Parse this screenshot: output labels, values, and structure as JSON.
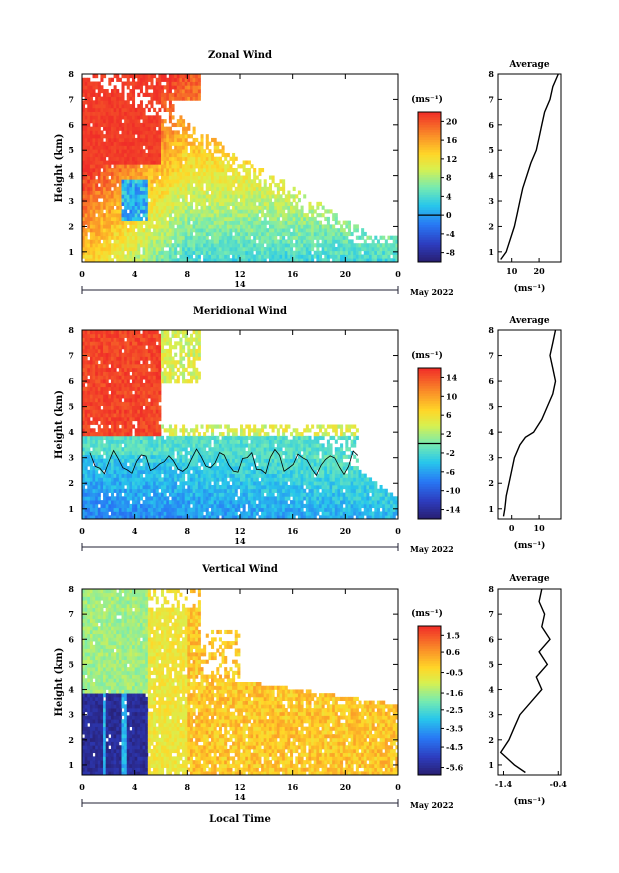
{
  "common": {
    "x_ticks": [
      "0",
      "4",
      "8",
      "12",
      "16",
      "20",
      "0"
    ],
    "y_ticks": [
      "1",
      "2",
      "3",
      "4",
      "5",
      "6",
      "7",
      "8"
    ],
    "ylabel": "Height (km)",
    "date_day": "14",
    "date_month": "May 2022",
    "xlabel": "Local Time",
    "avg_title": "Average",
    "unit": "(ms⁻¹)"
  },
  "chart_data": [
    {
      "type": "heatmap",
      "title": "Zonal Wind",
      "x_range": [
        0,
        24
      ],
      "y_range": [
        0.6,
        8
      ],
      "colorbar": {
        "ticks": [
          "20",
          "16",
          "12",
          "8",
          "4",
          "0",
          "-4",
          "-8"
        ],
        "min": -10,
        "max": 22,
        "zero_line": 0
      },
      "average_profile": {
        "x_ticks": [
          "10",
          "20"
        ],
        "xlim": [
          5,
          28
        ],
        "height": [
          0.7,
          1.0,
          1.5,
          2.0,
          2.5,
          3.0,
          3.5,
          4.0,
          4.5,
          5.0,
          5.5,
          6.0,
          6.5,
          7.0,
          7.5,
          8.0
        ],
        "values": [
          6,
          8,
          9.5,
          11,
          12,
          13,
          14,
          15.5,
          17,
          19,
          20,
          21,
          22,
          24,
          25,
          27
        ]
      }
    },
    {
      "type": "heatmap",
      "title": "Meridional Wind",
      "x_range": [
        0,
        24
      ],
      "y_range": [
        0.6,
        8
      ],
      "colorbar": {
        "ticks": [
          "14",
          "10",
          "6",
          "2",
          "-2",
          "-6",
          "-10",
          "-14"
        ],
        "min": -16,
        "max": 16,
        "zero_line": 0
      },
      "average_profile": {
        "x_ticks": [
          "0",
          "10"
        ],
        "xlim": [
          -5,
          18
        ],
        "height": [
          0.7,
          1.0,
          1.5,
          2.0,
          2.5,
          3.0,
          3.5,
          3.8,
          4.0,
          4.5,
          5.0,
          5.5,
          6.0,
          6.5,
          7.0,
          7.5,
          8.0
        ],
        "values": [
          -3,
          -2.5,
          -2,
          -1,
          0,
          1,
          3,
          5,
          8,
          11,
          13,
          15,
          16,
          15,
          14,
          15,
          16
        ]
      }
    },
    {
      "type": "heatmap",
      "title": "Vertical Wind",
      "x_range": [
        0,
        24
      ],
      "y_range": [
        0.6,
        8
      ],
      "colorbar": {
        "ticks": [
          "1.5",
          "0.6",
          "-0.5",
          "-1.6",
          "-2.5",
          "-3.5",
          "-4.5",
          "-5.6"
        ],
        "min": -6,
        "max": 2,
        "zero_line": null
      },
      "average_profile": {
        "x_ticks": [
          "-1.4",
          "-0.4"
        ],
        "xlim": [
          -1.5,
          -0.35
        ],
        "height": [
          0.7,
          1.0,
          1.5,
          2.0,
          2.5,
          3.0,
          3.5,
          4.0,
          4.5,
          5.0,
          5.5,
          6.0,
          6.5,
          7.0,
          7.5,
          8.0
        ],
        "values": [
          -1.0,
          -1.2,
          -1.45,
          -1.3,
          -1.2,
          -1.1,
          -0.9,
          -0.7,
          -0.8,
          -0.6,
          -0.75,
          -0.55,
          -0.7,
          -0.65,
          -0.75,
          -0.7
        ]
      }
    }
  ]
}
